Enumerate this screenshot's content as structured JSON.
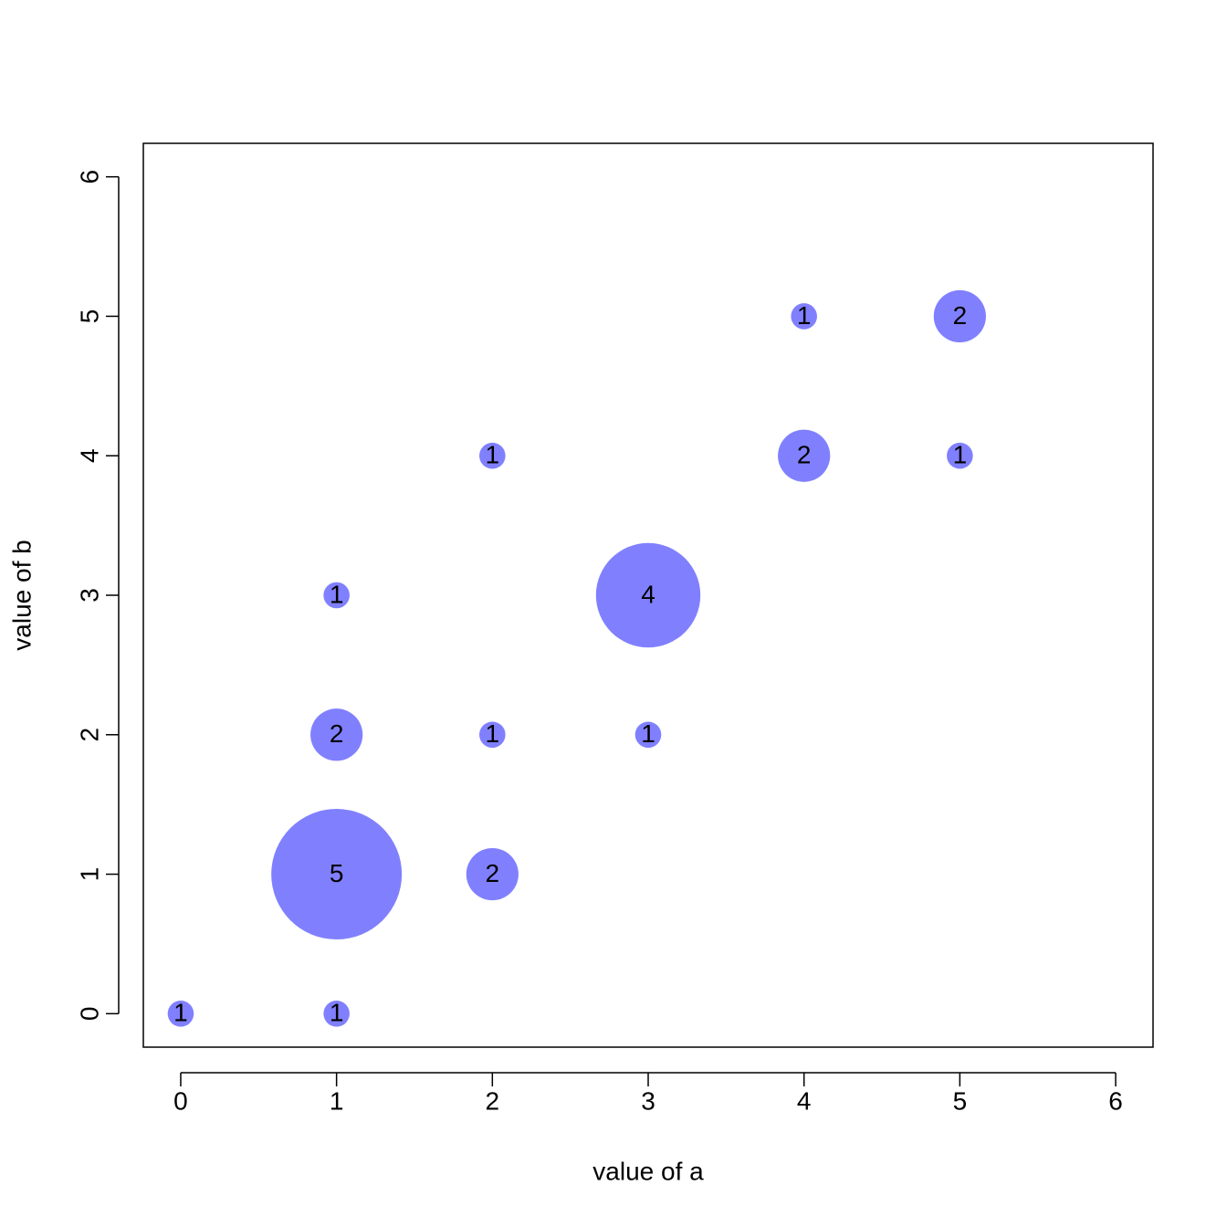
{
  "chart_data": {
    "type": "bubble",
    "xlabel": "value of a",
    "ylabel": "value of b",
    "x": [
      0,
      1,
      1,
      2,
      1,
      2,
      3,
      1,
      3,
      2,
      4,
      5,
      4,
      5
    ],
    "y": [
      0,
      0,
      1,
      1,
      2,
      2,
      2,
      3,
      3,
      4,
      4,
      4,
      5,
      5
    ],
    "sizes": [
      1,
      1,
      5,
      2,
      2,
      1,
      1,
      1,
      4,
      1,
      2,
      1,
      1,
      2
    ],
    "color": "#8080ff",
    "xlim": [
      -0.24,
      6.24
    ],
    "ylim": [
      -0.24,
      6.24
    ],
    "xticks": [
      0,
      1,
      2,
      3,
      4,
      5,
      6
    ],
    "yticks": [
      0,
      1,
      2,
      3,
      4,
      5,
      6
    ]
  }
}
